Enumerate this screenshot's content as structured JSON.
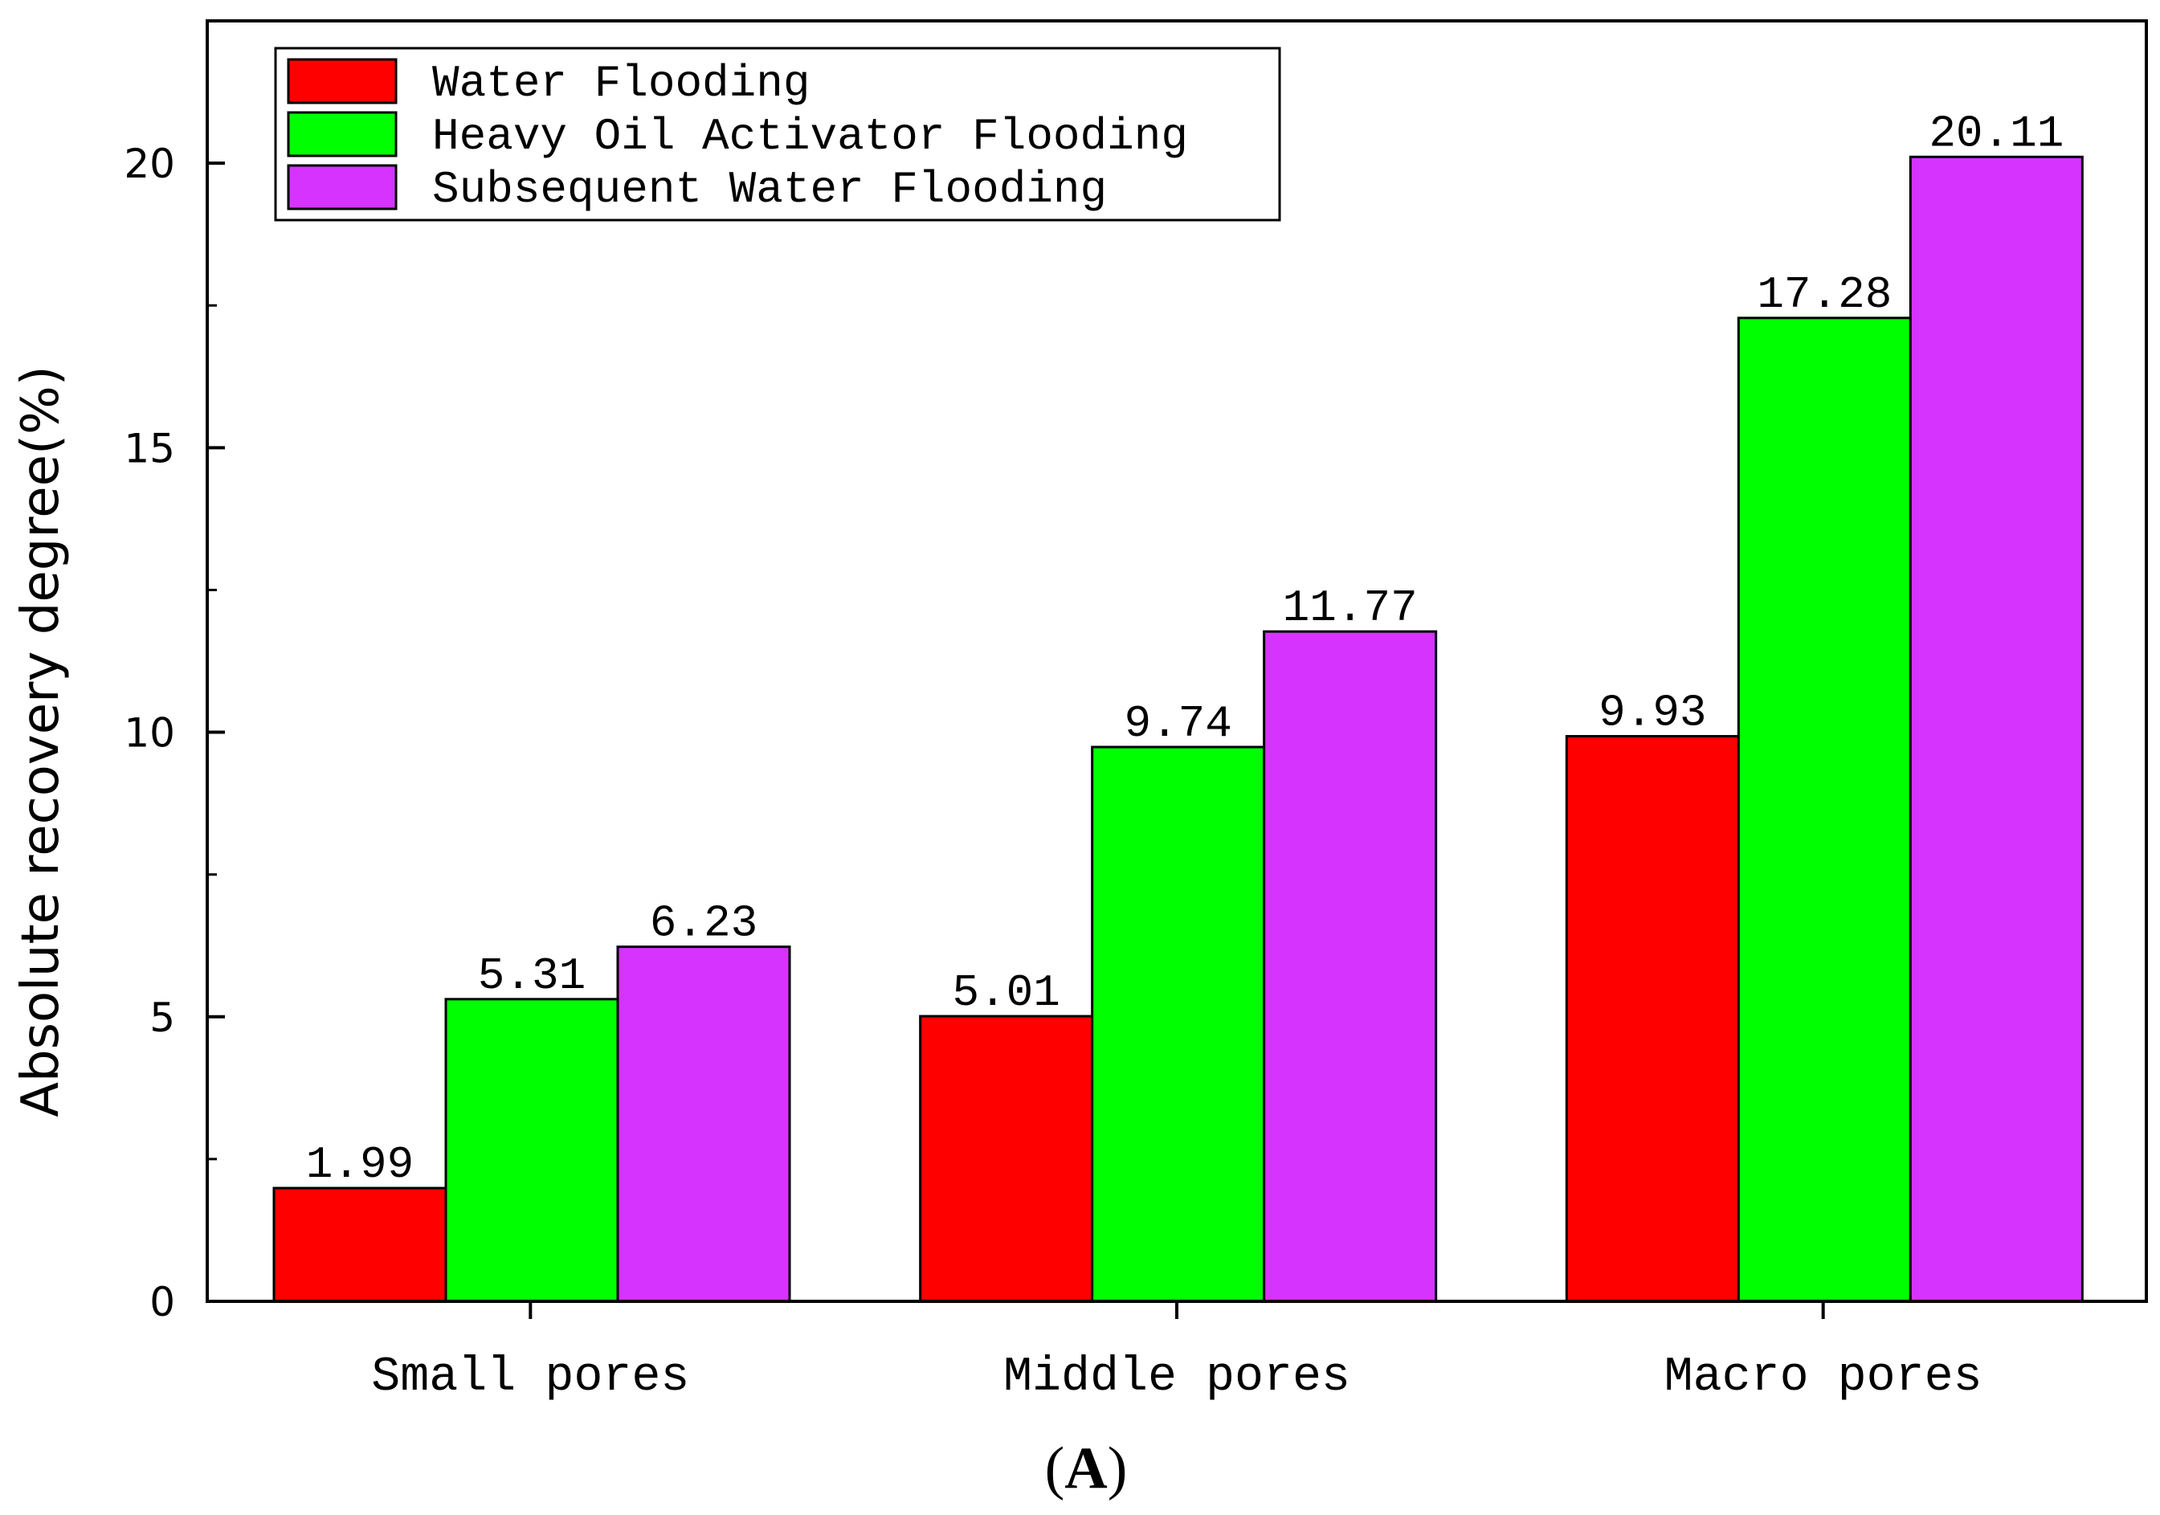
{
  "chart_data": {
    "type": "bar",
    "categories": [
      "Small pores",
      "Middle pores",
      "Macro pores"
    ],
    "series": [
      {
        "name": "Water Flooding",
        "color": "#ff0000",
        "values": [
          1.99,
          5.01,
          9.93
        ]
      },
      {
        "name": "Heavy Oil Activator Flooding",
        "color": "#00ff00",
        "values": [
          5.31,
          9.74,
          17.28
        ]
      },
      {
        "name": "Subsequent Water Flooding",
        "color": "#d633ff",
        "values": [
          6.23,
          11.77,
          20.11
        ]
      }
    ],
    "value_labels": [
      [
        "1.99",
        "5.01",
        "9.93"
      ],
      [
        "5.31",
        "9.74",
        "17.28"
      ],
      [
        "6.23",
        "11.77",
        "20.11"
      ]
    ],
    "ylabel": "Absolute recovery degree(%)",
    "ylim": [
      0,
      22.5
    ],
    "yticks": [
      0,
      5,
      10,
      15,
      20
    ],
    "legend_position": "top-left",
    "grid": false
  },
  "caption": {
    "open": "(",
    "letter": "A",
    "close": ")"
  }
}
